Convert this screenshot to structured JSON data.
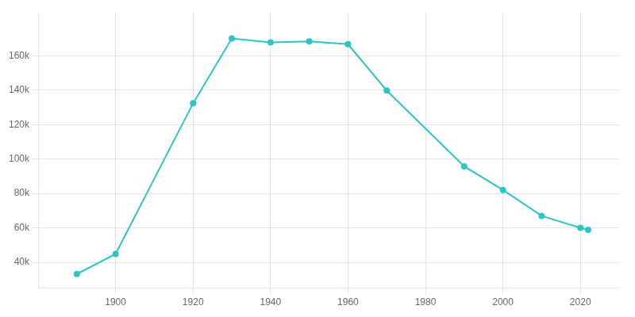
{
  "chart_data": {
    "type": "line",
    "x": [
      1890,
      1900,
      1920,
      1930,
      1940,
      1950,
      1960,
      1970,
      1990,
      2000,
      2010,
      2020,
      2022
    ],
    "values": [
      33220,
      44885,
      132358,
      170002,
      167720,
      168330,
      166689,
      139788,
      95732,
      82026,
      66982,
      60068,
      58918
    ],
    "color": "#2ec4c4",
    "marker": "circle",
    "xlim": [
      1880,
      2030
    ],
    "xticks": [
      1900,
      1920,
      1940,
      1960,
      1980,
      2000,
      2020
    ],
    "ylim": [
      25000,
      185000
    ],
    "yticks": [
      {
        "value": 40000,
        "label": "40k"
      },
      {
        "value": 60000,
        "label": "60k"
      },
      {
        "value": 80000,
        "label": "80k"
      },
      {
        "value": 100000,
        "label": "100k"
      },
      {
        "value": 120000,
        "label": "120k"
      },
      {
        "value": 140000,
        "label": "140k"
      },
      {
        "value": 160000,
        "label": "160k"
      }
    ],
    "grid": true
  }
}
